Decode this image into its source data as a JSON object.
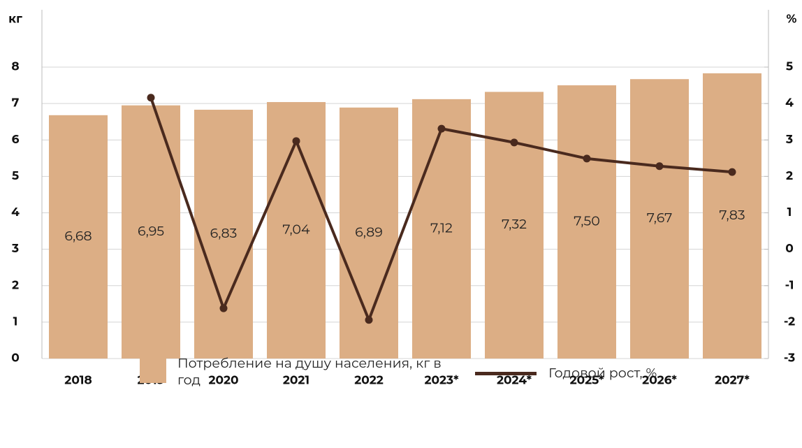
{
  "chart_data": {
    "type": "bar_line",
    "y_label": "кг",
    "y2_label": "%",
    "categories": [
      "2018",
      "2019",
      "2020",
      "2021",
      "2022",
      "2023*",
      "2024*",
      "2025*",
      "2026*",
      "2027*"
    ],
    "series": [
      {
        "name": "Потребление на душу населения, кг в год",
        "color": "#dcae85",
        "values": [
          6.68,
          6.95,
          6.83,
          7.04,
          6.89,
          7.12,
          7.32,
          7.5,
          7.67,
          7.83
        ],
        "value_labels": [
          "6,68",
          "6,95",
          "6,83",
          "7,04",
          "6,89",
          "7,12",
          "7,32",
          "7,50",
          "7,67",
          "7,83"
        ]
      },
      {
        "name": "Годовой рост, %",
        "color": "#4a2a1e",
        "axis": "y2",
        "values": [
          null,
          4.16,
          -1.62,
          2.97,
          -1.94,
          3.31,
          2.93,
          2.49,
          2.28,
          2.12
        ]
      }
    ],
    "ylim": [
      0,
      8
    ],
    "yticks": [
      0,
      1,
      2,
      3,
      4,
      5,
      6,
      7,
      8
    ],
    "y2lim": [
      -3,
      5
    ],
    "y2ticks": [
      -3,
      -2,
      -1,
      0,
      1,
      2,
      3,
      4,
      5
    ],
    "grid": true
  }
}
